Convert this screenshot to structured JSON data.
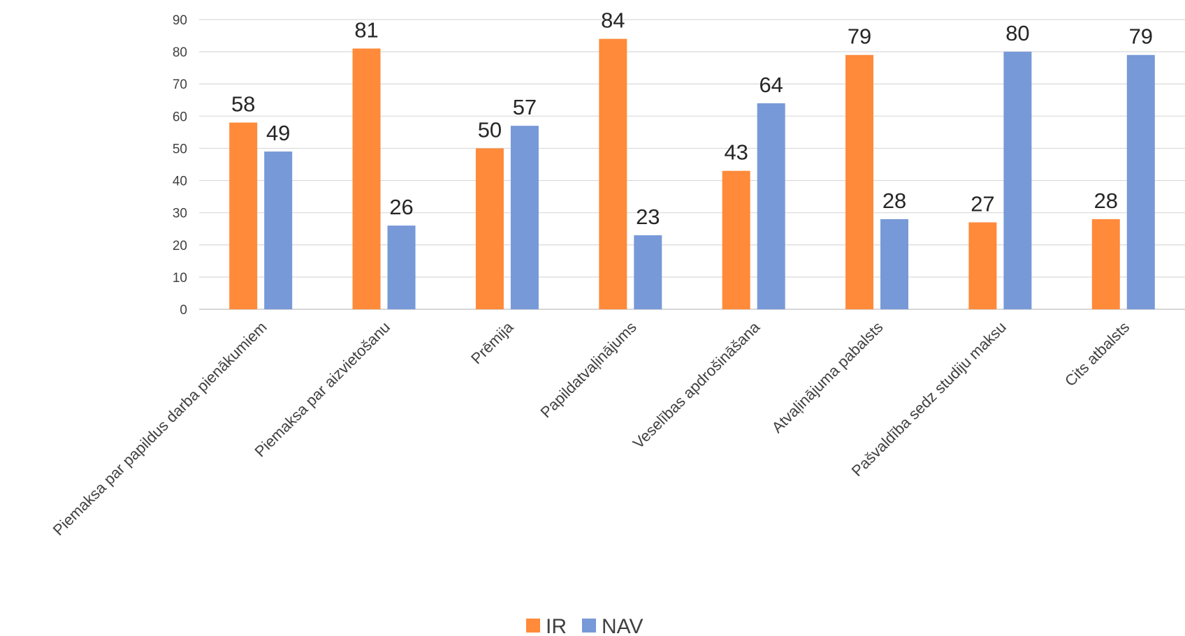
{
  "chart_data": {
    "type": "bar",
    "title": "",
    "xlabel": "",
    "ylabel": "",
    "ylim": [
      0,
      90
    ],
    "ytick_step": 10,
    "grid": true,
    "legend_position": "bottom",
    "categories": [
      "Piemaksa par papildus darba pienākumiem",
      "Piemaksa par aizvietošanu",
      "Prēmija",
      "Papildatvaļinājums",
      "Veselības apdrošināšana",
      "Atvaļinājuma pabalsts",
      "Pašvaldība sedz studiju maksu",
      "Cits atbalsts"
    ],
    "series": [
      {
        "name": "IR",
        "color": "#FF8A3A",
        "values": [
          58,
          81,
          50,
          84,
          43,
          79,
          27,
          28
        ]
      },
      {
        "name": "NAV",
        "color": "#7799D8",
        "values": [
          49,
          26,
          57,
          23,
          64,
          28,
          80,
          79
        ]
      }
    ]
  }
}
